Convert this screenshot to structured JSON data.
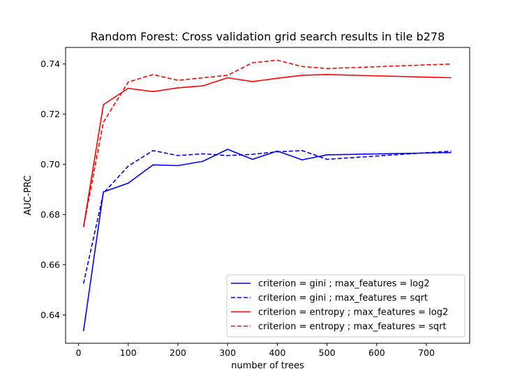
{
  "chart_data": {
    "type": "line",
    "title": "Random Forest: Cross validation grid search results in tile b278",
    "xlabel": "number of trees",
    "ylabel": "AUC-PRC",
    "xlim": [
      -26,
      787
    ],
    "ylim": [
      0.6287,
      0.7466
    ],
    "xticks": [
      0,
      100,
      200,
      300,
      400,
      500,
      600,
      700
    ],
    "yticks": [
      0.64,
      0.66,
      0.68,
      0.7,
      0.72,
      0.74
    ],
    "ytick_labels": [
      "0.64",
      "0.66",
      "0.68",
      "0.70",
      "0.72",
      "0.74"
    ],
    "x": [
      10,
      50,
      100,
      150,
      200,
      250,
      300,
      350,
      400,
      450,
      500,
      750
    ],
    "grid": false,
    "legend_position": "lower right",
    "series": [
      {
        "name": "criterion = gini ; max_features = log2",
        "color": "#0000ff",
        "dash": "solid",
        "values": [
          0.6335,
          0.689,
          0.6925,
          0.6998,
          0.6995,
          0.7012,
          0.706,
          0.702,
          0.7053,
          0.7018,
          0.7038,
          0.7047
        ]
      },
      {
        "name": "criterion = gini ; max_features = sqrt",
        "color": "#0000ff",
        "dash": "dashed",
        "values": [
          0.6525,
          0.6885,
          0.6993,
          0.7055,
          0.7035,
          0.7042,
          0.7035,
          0.704,
          0.705,
          0.7055,
          0.702,
          0.7053
        ]
      },
      {
        "name": "criterion = entropy ; max_features = log2",
        "color": "#ff0000",
        "dash": "solid",
        "values": [
          0.675,
          0.7238,
          0.7303,
          0.729,
          0.7305,
          0.7313,
          0.7345,
          0.733,
          0.7343,
          0.7355,
          0.7358,
          0.7345
        ]
      },
      {
        "name": "criterion = entropy ; max_features = sqrt",
        "color": "#ff0000",
        "dash": "dashed",
        "values": [
          0.675,
          0.7168,
          0.7328,
          0.7358,
          0.7335,
          0.7345,
          0.7355,
          0.7405,
          0.7415,
          0.739,
          0.7382,
          0.74
        ]
      }
    ]
  }
}
